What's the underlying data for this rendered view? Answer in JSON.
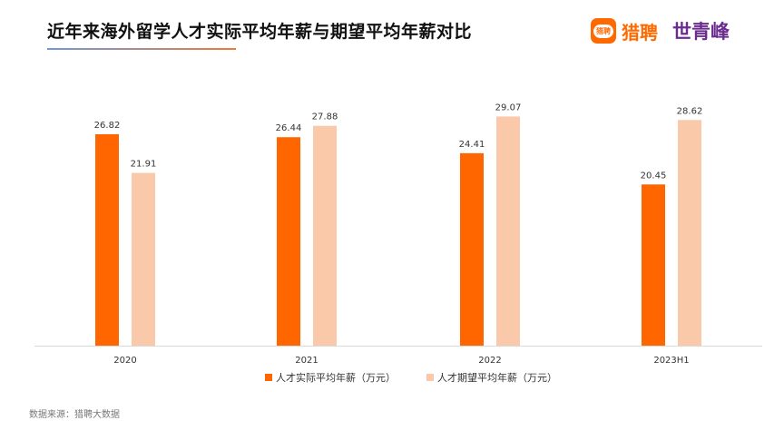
{
  "title": "近年来海外留学人才实际平均年薪与期望平均年薪对比",
  "logos": {
    "liepin": "猎聘",
    "liepin_icon": "猎聘",
    "shiqingfeng": "世青峰"
  },
  "source": "数据来源：猎聘大数据",
  "chart_data": {
    "type": "bar",
    "categories": [
      "2020",
      "2021",
      "2022",
      "2023H1"
    ],
    "series": [
      {
        "name": "人才实际平均年薪（万元）",
        "values": [
          26.82,
          26.44,
          24.41,
          20.45
        ],
        "color": "#ff6600"
      },
      {
        "name": "人才期望平均年薪（万元）",
        "values": [
          21.91,
          27.88,
          29.07,
          28.62
        ],
        "color": "#f9c9a9"
      }
    ],
    "ylim": [
      0,
      30
    ],
    "grid": false,
    "legend": "bottom"
  }
}
